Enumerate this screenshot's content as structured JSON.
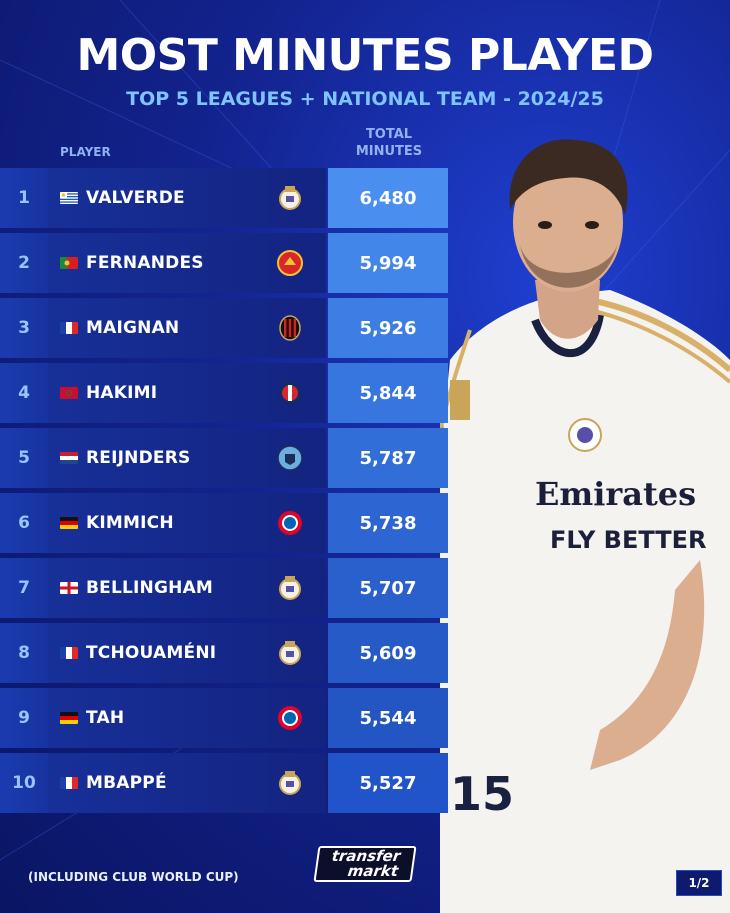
{
  "header": {
    "title": "MOST MINUTES PLAYED",
    "subtitle": "TOP 5 LEAGUES + NATIONAL TEAM - 2024/25"
  },
  "table": {
    "col_player": "PLAYER",
    "col_total_line1": "TOTAL",
    "col_total_line2": "MINUTES",
    "rows": [
      {
        "rank": "1",
        "name": "VALVERDE",
        "flag": "uruguay-flag",
        "club": "real-madrid-crest",
        "minutes": "6,480"
      },
      {
        "rank": "2",
        "name": "FERNANDES",
        "flag": "portugal-flag",
        "club": "manchester-united-crest",
        "minutes": "5,994"
      },
      {
        "rank": "3",
        "name": "MAIGNAN",
        "flag": "france-flag",
        "club": "ac-milan-crest",
        "minutes": "5,926"
      },
      {
        "rank": "4",
        "name": "HAKIMI",
        "flag": "morocco-flag",
        "club": "psg-crest",
        "minutes": "5,844"
      },
      {
        "rank": "5",
        "name": "REIJNDERS",
        "flag": "netherlands-flag",
        "club": "manchester-city-crest",
        "minutes": "5,787"
      },
      {
        "rank": "6",
        "name": "KIMMICH",
        "flag": "germany-flag",
        "club": "bayern-crest",
        "minutes": "5,738"
      },
      {
        "rank": "7",
        "name": "BELLINGHAM",
        "flag": "england-flag",
        "club": "real-madrid-crest",
        "minutes": "5,707"
      },
      {
        "rank": "8",
        "name": "TCHOUAMÉNI",
        "flag": "france-flag",
        "club": "real-madrid-crest",
        "minutes": "5,609"
      },
      {
        "rank": "9",
        "name": "TAH",
        "flag": "germany-flag",
        "club": "bayern-crest",
        "minutes": "5,544"
      },
      {
        "rank": "10",
        "name": "MBAPPÉ",
        "flag": "france-flag",
        "club": "real-madrid-crest",
        "minutes": "5,527"
      }
    ]
  },
  "player_image": {
    "shirt_sponsor_line1": "Emirates",
    "shirt_sponsor_line2": "FLY BETTER",
    "shirt_number": "15"
  },
  "footer": {
    "note": "(INCLUDING CLUB WORLD CUP)",
    "logo_line1": "transfer",
    "logo_line2": "markt",
    "page": "1/2"
  },
  "colors": {
    "background": "#13238f",
    "title": "#ffffff",
    "subtitle": "#7fc3ff",
    "minutes_top": "#4a8ff0",
    "minutes_bottom": "#2254c9"
  }
}
